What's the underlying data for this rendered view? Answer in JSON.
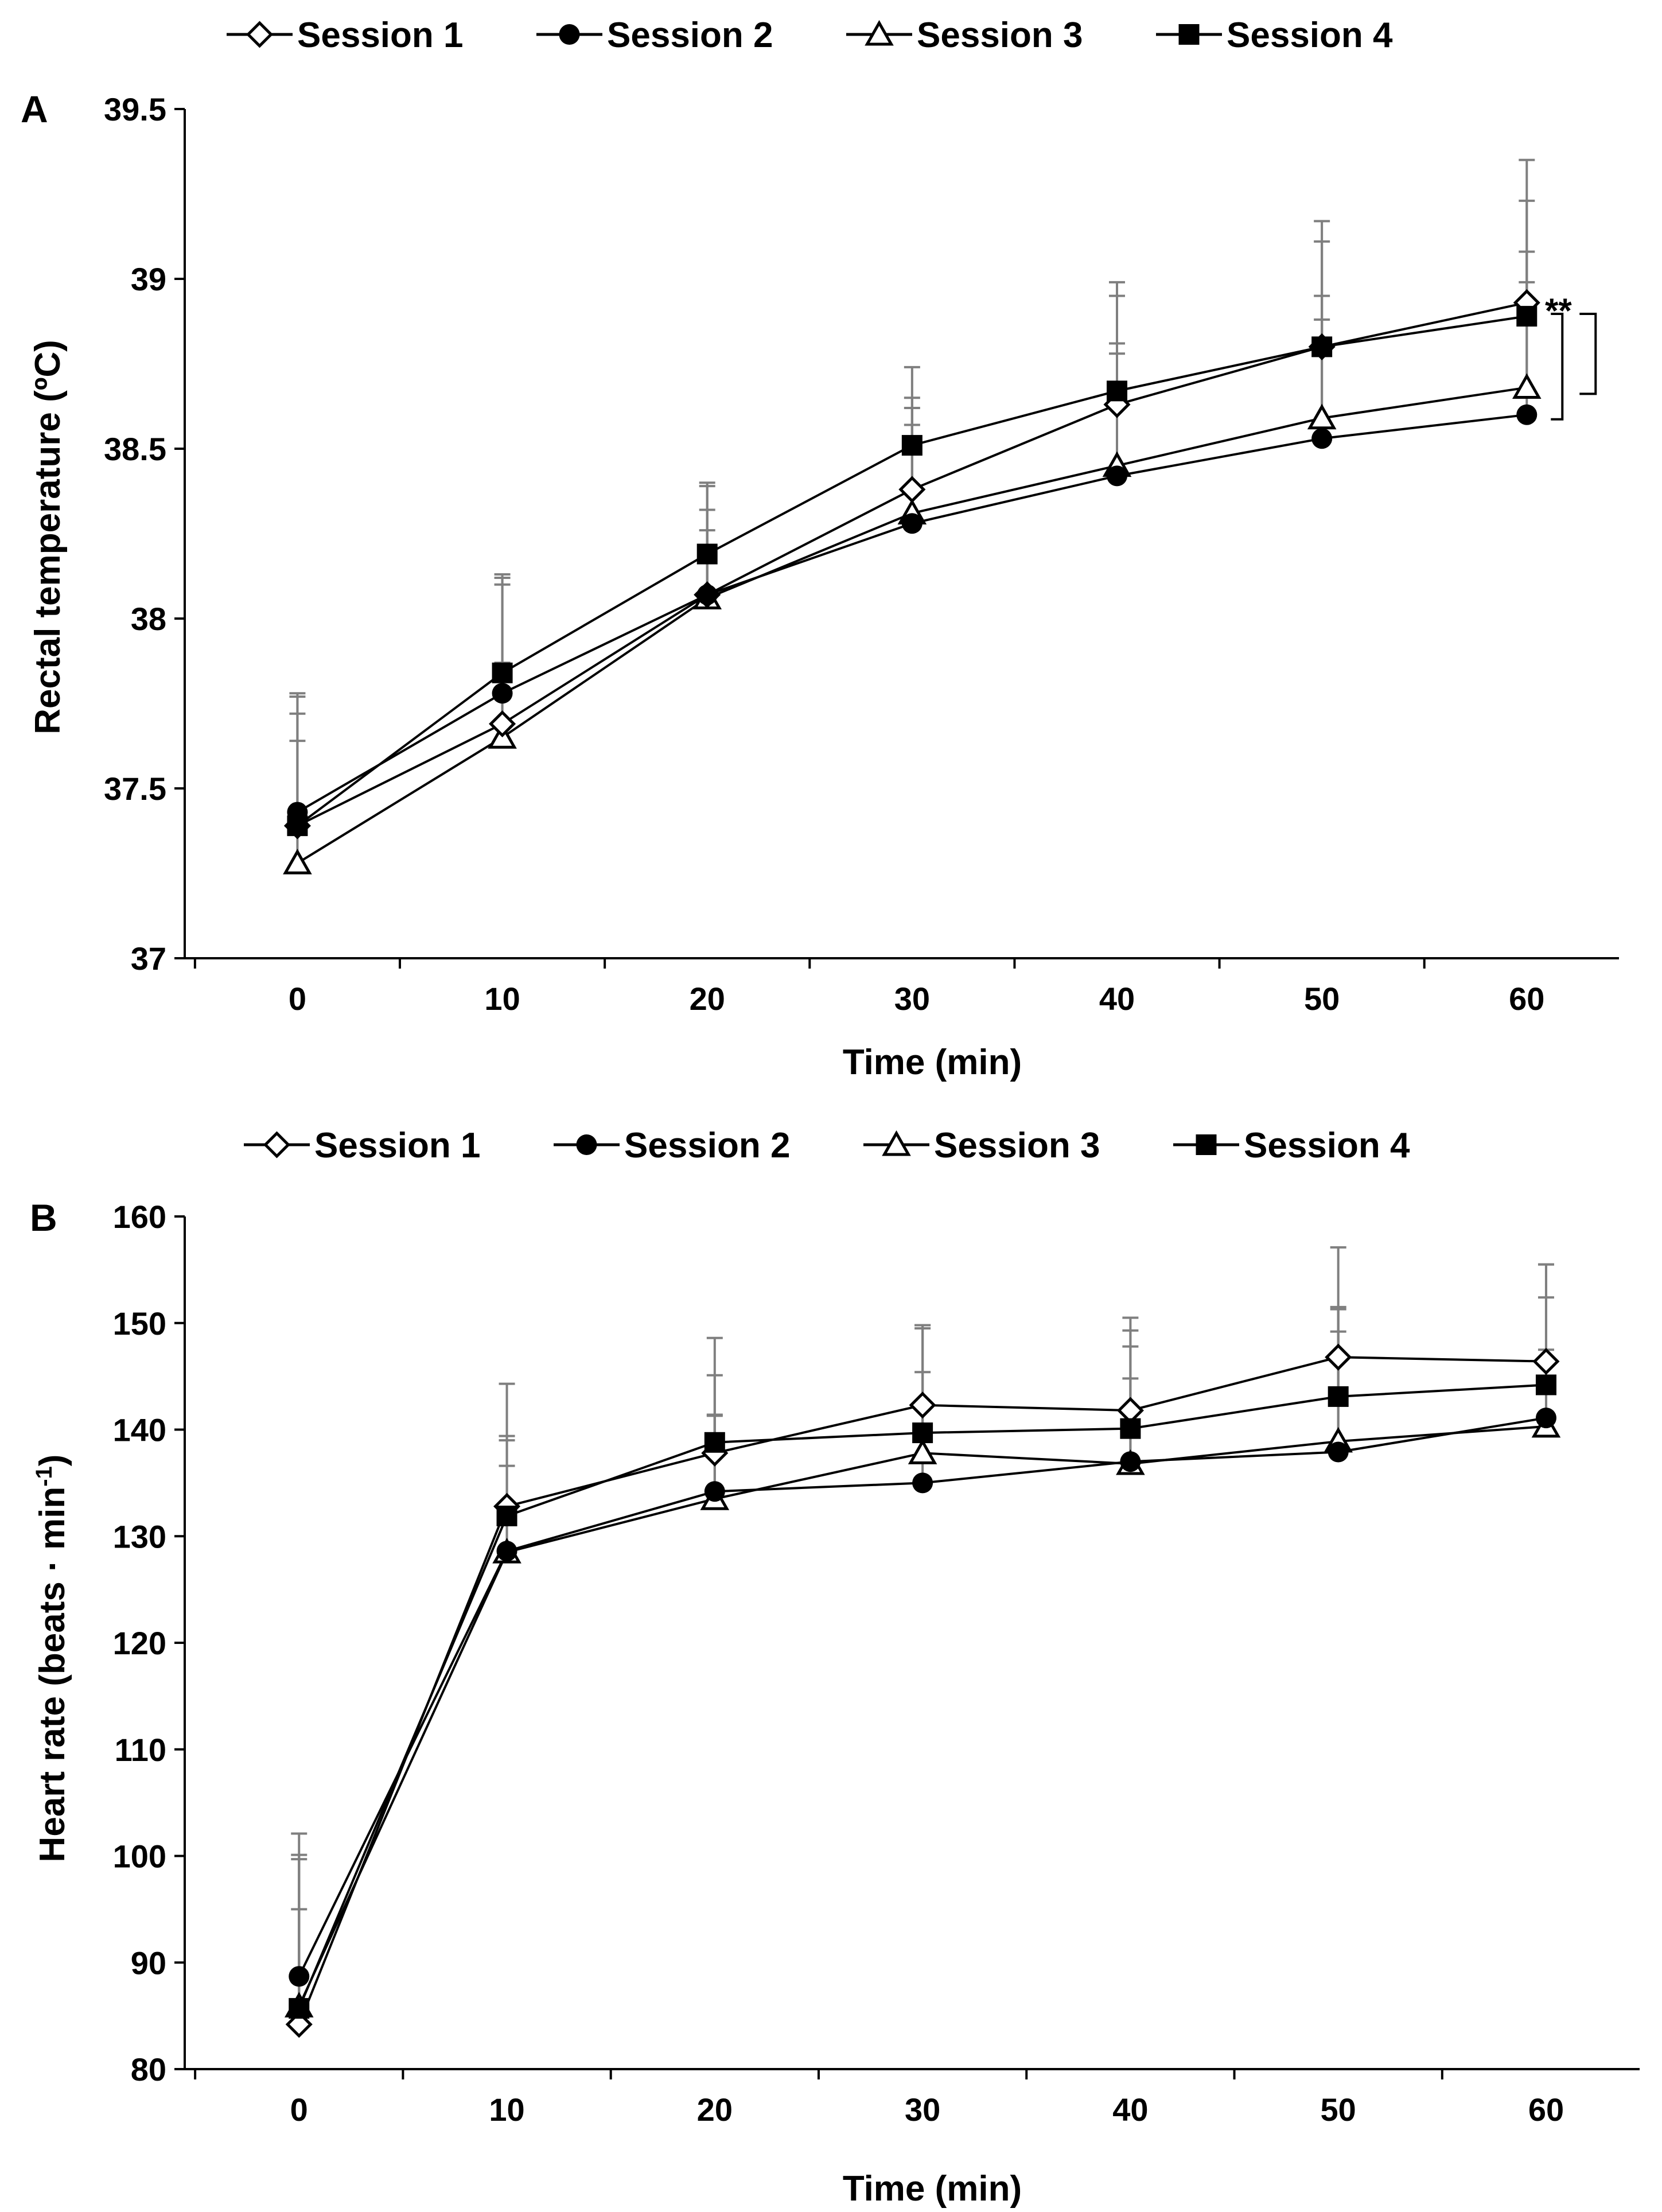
{
  "legend": [
    {
      "name": "Session 1",
      "marker": "diamond-open"
    },
    {
      "name": "Session 2",
      "marker": "circle-filled"
    },
    {
      "name": "Session 3",
      "marker": "triangle-open"
    },
    {
      "name": "Session 4",
      "marker": "square-filled"
    }
  ],
  "colors": {
    "line": "#000000",
    "error_bar": "#7f7f7f"
  },
  "chart_data": [
    {
      "panel": "A",
      "type": "line",
      "x": [
        0,
        10,
        20,
        30,
        40,
        50,
        60
      ],
      "xlabel": "Time (min)",
      "ylabel": "Rectal temperature  (ºC)",
      "xlim": [
        -5.5,
        64.5
      ],
      "ylim": [
        37,
        39.5
      ],
      "xticks": [
        "0",
        "10",
        "20",
        "30",
        "40",
        "50",
        "60"
      ],
      "yticks": [
        "37",
        "37.5",
        "38",
        "38.5",
        "39",
        "39.5"
      ],
      "series": [
        {
          "name": "Session 1",
          "values": [
            37.39,
            37.69,
            38.07,
            38.38,
            38.63,
            38.8,
            38.93
          ],
          "error_upper": [
            37.77,
            38.12,
            38.39,
            38.65,
            38.95,
            39.11,
            39.23
          ]
        },
        {
          "name": "Session 2",
          "values": [
            37.43,
            37.78,
            38.07,
            38.28,
            38.42,
            38.53,
            38.6
          ],
          "error_upper": [
            37.72,
            38.1,
            38.32,
            38.57,
            38.78,
            38.88,
            38.99
          ]
        },
        {
          "name": "Session 3",
          "values": [
            37.28,
            37.65,
            38.06,
            38.31,
            38.45,
            38.59,
            38.68
          ],
          "error_upper": [
            37.64,
            37.87,
            38.26,
            38.62,
            38.81,
            38.95,
            39.08
          ]
        },
        {
          "name": "Session 4",
          "values": [
            37.39,
            37.84,
            38.19,
            38.51,
            38.67,
            38.8,
            38.89
          ],
          "error_upper": [
            37.78,
            38.13,
            38.4,
            38.74,
            38.99,
            39.17,
            39.35
          ]
        }
      ],
      "annotation": "**"
    },
    {
      "panel": "B",
      "type": "line",
      "x": [
        0,
        10,
        20,
        30,
        40,
        50,
        60
      ],
      "xlabel": "Time (min)",
      "ylabel": "Heart rate (beats · min",
      "ylabel_sup": "-1",
      "ylabel_end": ")",
      "xlim": [
        -5.5,
        64.5
      ],
      "ylim": [
        80,
        160
      ],
      "xticks": [
        "0",
        "10",
        "20",
        "30",
        "40",
        "50",
        "60"
      ],
      "yticks": [
        "80",
        "90",
        "100",
        "110",
        "120",
        "130",
        "140",
        "150",
        "160"
      ],
      "series": [
        {
          "name": "Session 1",
          "values": [
            84.2,
            132.8,
            137.8,
            142.3,
            141.8,
            146.8,
            146.4
          ],
          "error_upper": [
            95.0,
            139.4,
            145.1,
            149.5,
            144.8,
            151.3,
            152.4
          ]
        },
        {
          "name": "Session 2",
          "values": [
            88.7,
            128.6,
            134.2,
            135.0,
            137.0,
            137.9,
            141.1
          ],
          "error_upper": [
            99.7,
            136.6,
            141.4,
            145.4,
            147.8,
            149.2,
            147.5
          ]
        },
        {
          "name": "Session 3",
          "values": [
            85.9,
            128.5,
            133.5,
            137.8,
            136.8,
            138.9,
            140.3
          ],
          "error_upper": [
            100.1,
            139.0,
            141.3,
            149.8,
            149.3,
            151.5,
            155.5
          ]
        },
        {
          "name": "Session 4",
          "values": [
            85.7,
            131.9,
            138.8,
            139.7,
            140.1,
            143.1,
            144.2
          ],
          "error_upper": [
            102.1,
            144.3,
            148.6,
            149.8,
            150.5,
            157.1,
            155.5
          ]
        }
      ]
    }
  ]
}
